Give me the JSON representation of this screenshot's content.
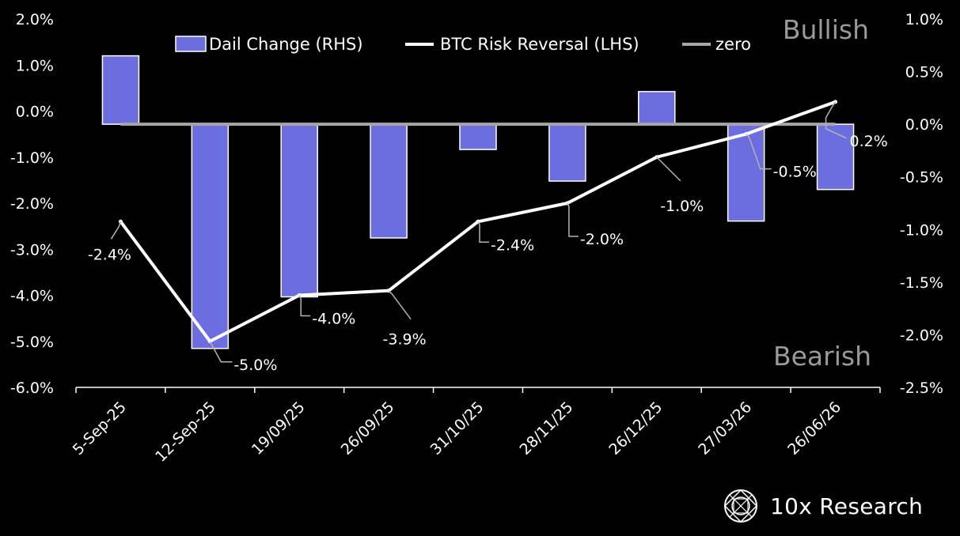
{
  "colors": {
    "background": "#000000",
    "bar": "#6c6ee0",
    "line": "#ffffff",
    "zero": "#a6a6a6",
    "axis": "#ffffff",
    "corner_text": "#9a9a9a",
    "leader": "#b3b3b3"
  },
  "chart_data": {
    "type": "bar+line",
    "categories": [
      "5-Sep-25",
      "12-Sep-25",
      "19/09/25",
      "26/09/25",
      "31/10/25",
      "28/11/25",
      "26/12/25",
      "27/03/26",
      "26/06/26"
    ],
    "series": [
      {
        "name": "Dail Change (RHS)",
        "type": "bar",
        "axis": "right",
        "values": [
          0.65,
          -2.13,
          -1.64,
          -1.08,
          -0.24,
          -0.54,
          0.31,
          -0.92,
          -0.62
        ]
      },
      {
        "name": "BTC Risk Reversal (LHS)",
        "type": "line",
        "axis": "left",
        "values": [
          -2.4,
          -5.0,
          -4.0,
          -3.9,
          -2.4,
          -2.0,
          -1.0,
          -0.5,
          0.2
        ],
        "labels": [
          "-2.4%",
          "-5.0%",
          "-4.0%",
          "-3.9%",
          "-2.4%",
          "-2.0%",
          "-1.0%",
          "-0.5%",
          "0.2%"
        ]
      },
      {
        "name": "zero",
        "type": "line",
        "axis": "right",
        "values": [
          0,
          0,
          0,
          0,
          0,
          0,
          0,
          0,
          0
        ]
      }
    ],
    "left_axis": {
      "min": -6.0,
      "max": 2.0,
      "step": 1.0,
      "ticks": [
        "2.0%",
        "1.0%",
        "0.0%",
        "-1.0%",
        "-2.0%",
        "-3.0%",
        "-4.0%",
        "-5.0%",
        "-6.0%"
      ]
    },
    "right_axis": {
      "min": -2.5,
      "max": 1.0,
      "step": 0.5,
      "ticks": [
        "1.0%",
        "0.5%",
        "0.0%",
        "-0.5%",
        "-1.0%",
        "-1.5%",
        "-2.0%",
        "-2.5%"
      ]
    },
    "annotations": {
      "top_right": "Bullish",
      "bottom_right": "Bearish"
    },
    "legend_position": "top"
  },
  "branding": {
    "name": "10x Research",
    "icon": "globe-logo-icon"
  }
}
